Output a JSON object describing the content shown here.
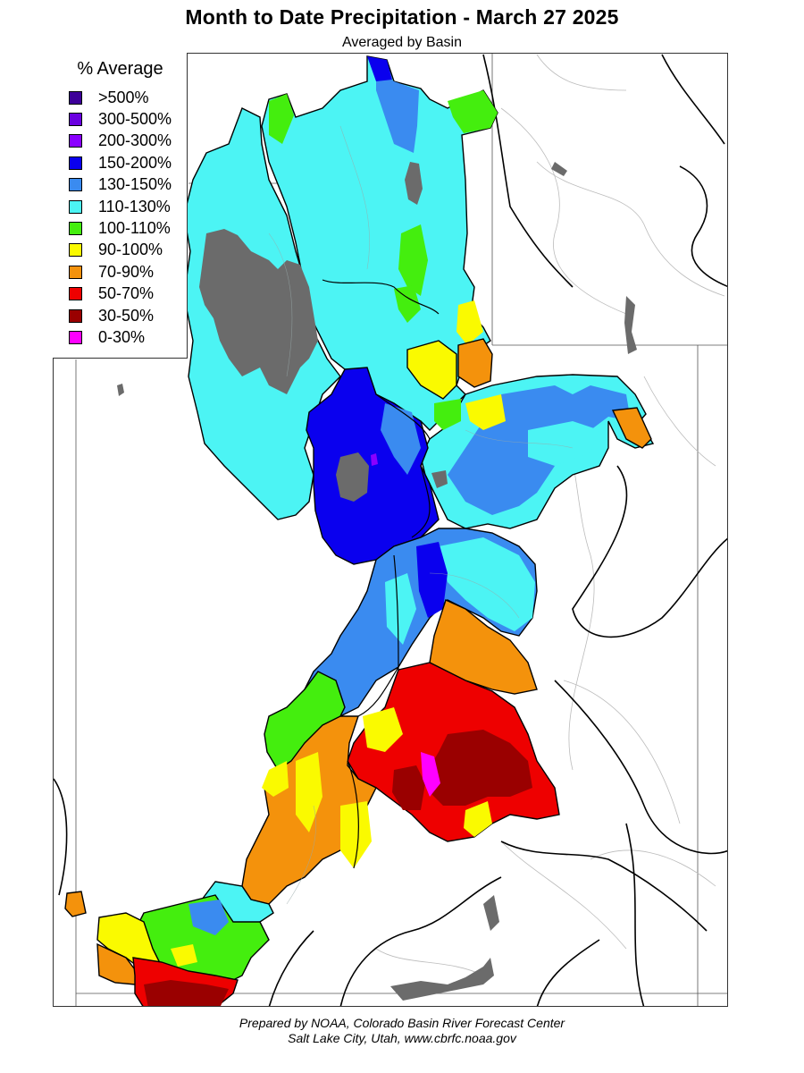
{
  "header": {
    "title": "Month to Date Precipitation - March 27 2025",
    "subtitle": "Averaged by Basin"
  },
  "legend": {
    "title": "% Average",
    "items": [
      {
        "label": ">500%",
        "color": "#3d0099"
      },
      {
        "label": "300-500%",
        "color": "#6a00e0"
      },
      {
        "label": "200-300%",
        "color": "#8a00ff"
      },
      {
        "label": "150-200%",
        "color": "#0a00ee"
      },
      {
        "label": "130-150%",
        "color": "#3a8bf0"
      },
      {
        "label": "110-130%",
        "color": "#4cf4f4"
      },
      {
        "label": "100-110%",
        "color": "#44ee0e"
      },
      {
        "label": "90-100%",
        "color": "#fafa00"
      },
      {
        "label": "70-90%",
        "color": "#f4920c"
      },
      {
        "label": "50-70%",
        "color": "#ee0000"
      },
      {
        "label": "30-50%",
        "color": "#9a0000"
      },
      {
        "label": "0-30%",
        "color": "#ff00ff"
      }
    ]
  },
  "map": {
    "no_data_color": "#6b6b6b"
  },
  "footer": {
    "line1": "Prepared by NOAA, Colorado Basin River Forecast Center",
    "line2": "Salt Lake City, Utah, www.cbrfc.noaa.gov"
  }
}
